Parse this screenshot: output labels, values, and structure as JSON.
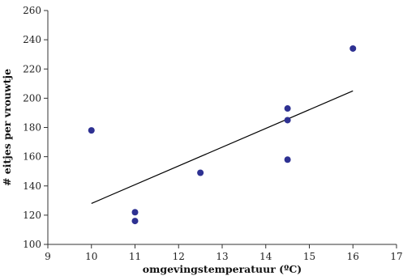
{
  "chart_data": {
    "type": "scatter",
    "xlabel": "omgevingstemperatuur (ºC)",
    "ylabel": "# eitjes per vrouwtje",
    "xlim": [
      9,
      17
    ],
    "ylim": [
      100,
      260
    ],
    "x_ticks": [
      "9",
      "10",
      "11",
      "12",
      "13",
      "14",
      "15",
      "16",
      "17"
    ],
    "y_ticks": [
      "100",
      "120",
      "140",
      "160",
      "180",
      "200",
      "220",
      "240",
      "260"
    ],
    "grid": false,
    "legend": "none",
    "marker_color": "#2E3192",
    "points": [
      {
        "x": 10,
        "y": 178
      },
      {
        "x": 11,
        "y": 122
      },
      {
        "x": 11,
        "y": 116
      },
      {
        "x": 12.5,
        "y": 149
      },
      {
        "x": 14.5,
        "y": 193
      },
      {
        "x": 14.5,
        "y": 185
      },
      {
        "x": 14.5,
        "y": 158
      },
      {
        "x": 16,
        "y": 234
      }
    ],
    "trendline": {
      "x": [
        10,
        16
      ],
      "y": [
        128,
        205
      ]
    }
  }
}
